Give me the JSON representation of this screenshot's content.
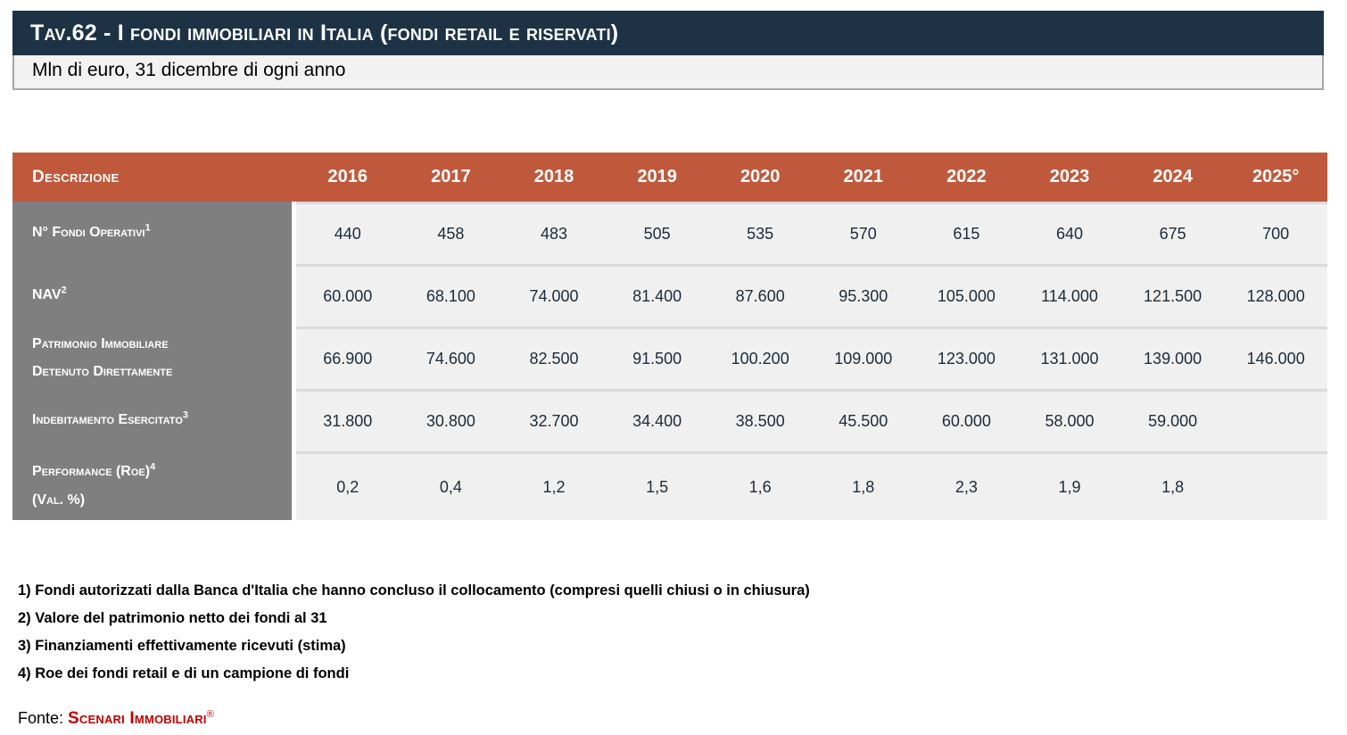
{
  "header": {
    "title": "Tav.62 - I fondi immobiliari in Italia (fondi retail e riservati)",
    "subtitle": "Mln di euro, 31 dicembre di ogni anno"
  },
  "table": {
    "description_header": "Descrizione",
    "years": [
      "2016",
      "2017",
      "2018",
      "2019",
      "2020",
      "2021",
      "2022",
      "2023",
      "2024",
      "2025°"
    ],
    "rows": [
      {
        "label": "N° Fondi Operativi",
        "sup": "1",
        "label2": "",
        "values": [
          "440",
          "458",
          "483",
          "505",
          "535",
          "570",
          "615",
          "640",
          "675",
          "700"
        ]
      },
      {
        "label": "NAV",
        "sup": "2",
        "label2": "",
        "values": [
          "60.000",
          "68.100",
          "74.000",
          "81.400",
          "87.600",
          "95.300",
          "105.000",
          "114.000",
          "121.500",
          "128.000"
        ]
      },
      {
        "label": "Patrimonio Immobiliare",
        "sup": "",
        "label2": "Detenuto Direttamente",
        "values": [
          "66.900",
          "74.600",
          "82.500",
          "91.500",
          "100.200",
          "109.000",
          "123.000",
          "131.000",
          "139.000",
          "146.000"
        ]
      },
      {
        "label": "Indebitamento Esercitato",
        "sup": "3",
        "label2": "",
        "values": [
          "31.800",
          "30.800",
          "32.700",
          "34.400",
          "38.500",
          "45.500",
          "60.000",
          "58.000",
          "59.000",
          ""
        ]
      },
      {
        "label": "Performance (Roe)",
        "sup": "4",
        "label2": "(Val. %)",
        "values": [
          "0,2",
          "0,4",
          "1,2",
          "1,5",
          "1,6",
          "1,8",
          "2,3",
          "1,9",
          "1,8",
          ""
        ]
      }
    ]
  },
  "chart_data": {
    "type": "table",
    "title": "Tav.62 - I fondi immobiliari in Italia (fondi retail e riservati)",
    "unit_note": "Mln di euro, 31 dicembre di ogni anno",
    "categories": [
      "2016",
      "2017",
      "2018",
      "2019",
      "2020",
      "2021",
      "2022",
      "2023",
      "2024",
      "2025°"
    ],
    "series": [
      {
        "name": "N° Fondi Operativi",
        "values": [
          440,
          458,
          483,
          505,
          535,
          570,
          615,
          640,
          675,
          700
        ]
      },
      {
        "name": "NAV",
        "values": [
          60000,
          68100,
          74000,
          81400,
          87600,
          95300,
          105000,
          114000,
          121500,
          128000
        ]
      },
      {
        "name": "Patrimonio Immobiliare Detenuto Direttamente",
        "values": [
          66900,
          74600,
          82500,
          91500,
          100200,
          109000,
          123000,
          131000,
          139000,
          146000
        ]
      },
      {
        "name": "Indebitamento Esercitato",
        "values": [
          31800,
          30800,
          32700,
          34400,
          38500,
          45500,
          60000,
          58000,
          59000,
          null
        ]
      },
      {
        "name": "Performance (Roe) (Val. %)",
        "values": [
          0.2,
          0.4,
          1.2,
          1.5,
          1.6,
          1.8,
          2.3,
          1.9,
          1.8,
          null
        ]
      }
    ]
  },
  "footnotes": [
    "1) Fondi autorizzati dalla Banca d'Italia che hanno concluso il collocamento (compresi quelli chiusi o in chiusura)",
    "2) Valore del patrimonio netto dei fondi al 31",
    "3) Finanziamenti effettivamente ricevuti (stima)",
    "4) Roe dei fondi retail e di un campione di fondi"
  ],
  "source": {
    "prefix": "Fonte:",
    "name": "Scenari Immobiliari",
    "mark": "®"
  },
  "colors": {
    "title_bar": "#1d3245",
    "header_row": "#c0593c",
    "label_column": "#7f7f7f",
    "data_cell_bg": "#f0f0f0",
    "subtitle_bg": "#f2f2f2",
    "source_red": "#c00000"
  }
}
